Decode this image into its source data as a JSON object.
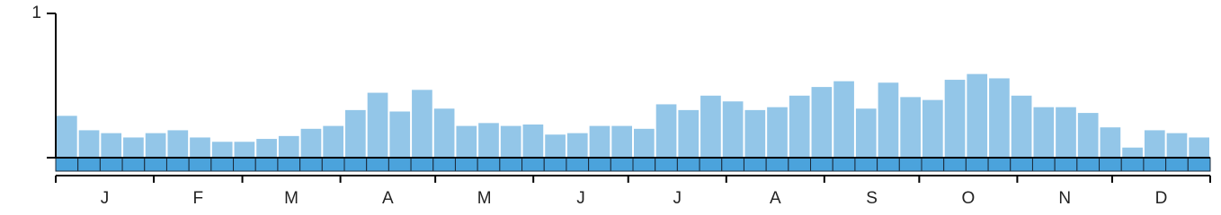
{
  "chart_data": {
    "type": "bar",
    "values": [
      0.29,
      0.19,
      0.17,
      0.14,
      0.17,
      0.19,
      0.14,
      0.11,
      0.11,
      0.13,
      0.15,
      0.2,
      0.22,
      0.33,
      0.45,
      0.32,
      0.47,
      0.34,
      0.22,
      0.24,
      0.22,
      0.23,
      0.16,
      0.17,
      0.22,
      0.22,
      0.2,
      0.37,
      0.33,
      0.43,
      0.39,
      0.33,
      0.35,
      0.43,
      0.49,
      0.53,
      0.34,
      0.52,
      0.42,
      0.4,
      0.54,
      0.58,
      0.55,
      0.43,
      0.35,
      0.35,
      0.31,
      0.21,
      0.07,
      0.19,
      0.17,
      0.14
    ],
    "color": "#93c6e8",
    "strip_color": "#4ba3dc",
    "month_labels": [
      "J",
      "F",
      "M",
      "A",
      "M",
      "J",
      "J",
      "A",
      "S",
      "O",
      "N",
      "D"
    ],
    "ylim": [
      0,
      1
    ],
    "yticks": [
      1
    ]
  }
}
